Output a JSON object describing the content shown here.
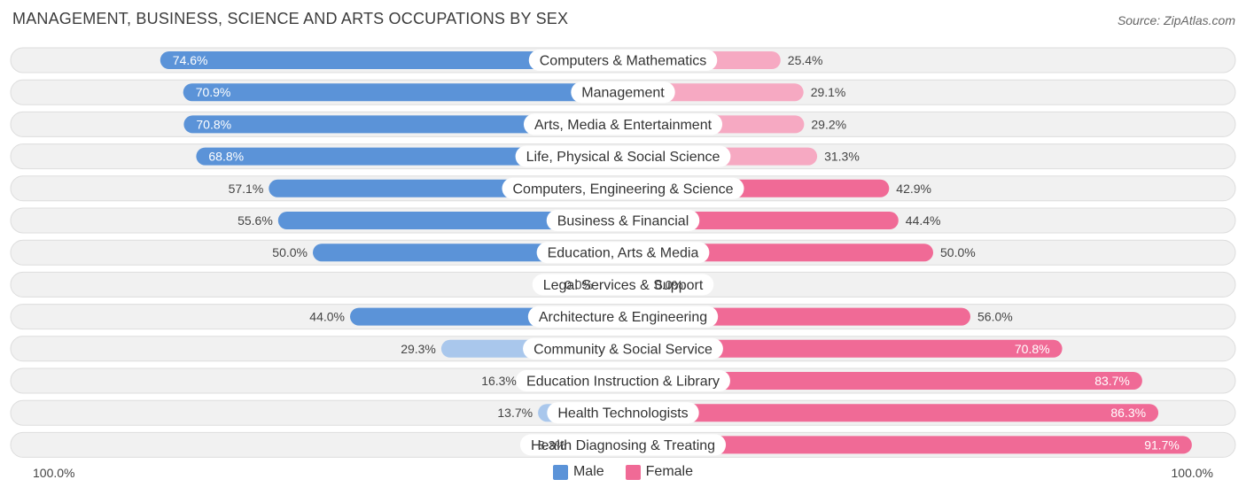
{
  "header": {
    "title": "Management, Business, Science and Arts Occupations by Sex",
    "source": "Source: ZipAtlas.com"
  },
  "legend": {
    "male_label": "Male",
    "female_label": "Female"
  },
  "axis": {
    "left_label": "100.0%",
    "right_label": "100.0%"
  },
  "colors": {
    "male_strong": "#5b93d8",
    "male_light": "#a9c7ec",
    "female_strong": "#f06a96",
    "female_light": "#f6a9c2",
    "row_bg": "#f1f1f1",
    "row_border": "#dddddd"
  },
  "chart_data": {
    "type": "bar",
    "orientation": "diverging-horizontal",
    "title": "Management, Business, Science and Arts Occupations by Sex",
    "xlim": [
      -100,
      100
    ],
    "categories": [
      "Computers & Mathematics",
      "Management",
      "Arts, Media & Entertainment",
      "Life, Physical & Social Science",
      "Computers, Engineering & Science",
      "Business & Financial",
      "Education, Arts & Media",
      "Legal Services & Support",
      "Architecture & Engineering",
      "Community & Social Service",
      "Education Instruction & Library",
      "Health Technologists",
      "Health Diagnosing & Treating"
    ],
    "series": [
      {
        "name": "Male",
        "values": [
          74.6,
          70.9,
          70.8,
          68.8,
          57.1,
          55.6,
          50.0,
          0.0,
          44.0,
          29.3,
          16.3,
          13.7,
          8.3
        ],
        "labels": [
          "74.6%",
          "70.9%",
          "70.8%",
          "68.8%",
          "57.1%",
          "55.6%",
          "50.0%",
          "0.0%",
          "44.0%",
          "29.3%",
          "16.3%",
          "13.7%",
          "8.3%"
        ]
      },
      {
        "name": "Female",
        "values": [
          25.4,
          29.1,
          29.2,
          31.3,
          42.9,
          44.4,
          50.0,
          0.0,
          56.0,
          70.8,
          83.7,
          86.3,
          91.7
        ],
        "labels": [
          "25.4%",
          "29.1%",
          "29.2%",
          "31.3%",
          "42.9%",
          "44.4%",
          "50.0%",
          "0.0%",
          "56.0%",
          "70.8%",
          "83.7%",
          "86.3%",
          "91.7%"
        ]
      }
    ],
    "legend_position": "bottom-center"
  }
}
